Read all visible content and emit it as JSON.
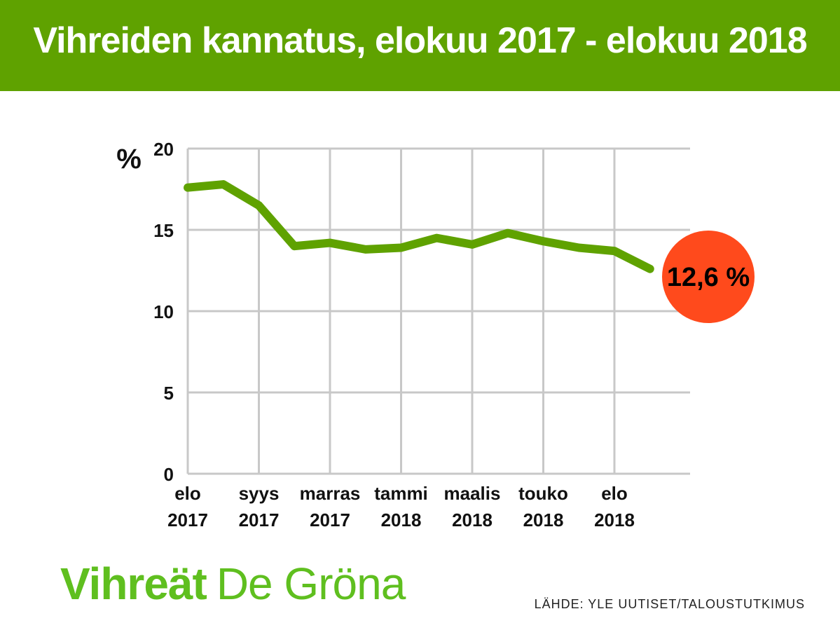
{
  "header": {
    "title": "Vihreiden kannatus, elokuu 2017 - elokuu 2018"
  },
  "colors": {
    "header_bg": "#5fa200",
    "line": "#5fa200",
    "grid": "#c8c8c8",
    "highlight": "#ff4a1c"
  },
  "chart_data": {
    "type": "line",
    "ylabel": "%",
    "ylim": [
      0,
      20
    ],
    "yticks": [
      "0",
      "5",
      "10",
      "15",
      "20"
    ],
    "x_ticks": [
      {
        "label": "elo",
        "year": "2017"
      },
      {
        "label": "syys",
        "year": "2017"
      },
      {
        "label": "marras",
        "year": "2017"
      },
      {
        "label": "tammi",
        "year": "2018"
      },
      {
        "label": "maalis",
        "year": "2018"
      },
      {
        "label": "touko",
        "year": "2018"
      },
      {
        "label": "elo",
        "year": "2018"
      }
    ],
    "series": [
      {
        "name": "Vihreät",
        "x": [
          0,
          0.5,
          1,
          1.5,
          2,
          2.5,
          3,
          3.5,
          4,
          4.5,
          5,
          5.5,
          6,
          6.5
        ],
        "values": [
          17.6,
          17.8,
          16.5,
          14.0,
          14.2,
          13.8,
          13.9,
          14.5,
          14.1,
          14.8,
          14.3,
          13.9,
          13.7,
          12.6
        ]
      }
    ],
    "annotation": "12,6 %"
  },
  "logo": {
    "bold": "Vihreät",
    "light": "De Gröna"
  },
  "source": "LÄHDE: YLE UUTISET/TALOUSTUTKIMUS"
}
